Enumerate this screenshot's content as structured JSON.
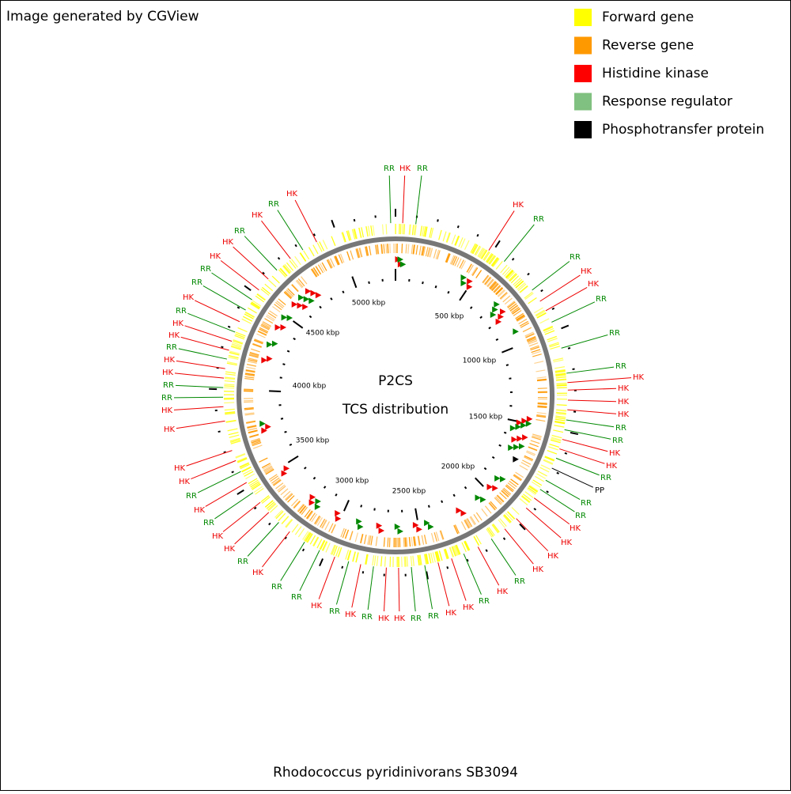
{
  "header": {
    "title": "Image generated by CGView"
  },
  "legend": [
    {
      "label": "Forward gene",
      "color": "#ffff00"
    },
    {
      "label": "Reverse gene",
      "color": "#ff9900"
    },
    {
      "label": "Histidine kinase",
      "color": "#ff0000"
    },
    {
      "label": "Response regulator",
      "color": "#80c080"
    },
    {
      "label": "Phosphotransfer protein",
      "color": "#000000"
    }
  ],
  "center": {
    "line1": "P2CS",
    "line2": "TCS distribution"
  },
  "scale_labels": [
    "500 kbp",
    "1000 kbp",
    "1500 kbp",
    "2000 kbp",
    "2500 kbp",
    "3000 kbp",
    "3500 kbp",
    "4000 kbp",
    "4500 kbp",
    "5000 kbp"
  ],
  "features": [
    "RR",
    "HK",
    "RR",
    "HK",
    "RR",
    "RR",
    "HK",
    "HK",
    "RR",
    "RR",
    "RR",
    "HK",
    "HK",
    "HK",
    "HK",
    "RR",
    "RR",
    "HK",
    "HK",
    "RR",
    "PP",
    "RR",
    "RR",
    "HK",
    "HK",
    "HK",
    "HK",
    "RR",
    "HK",
    "RR",
    "HK",
    "HK",
    "RR",
    "RR",
    "HK",
    "HK",
    "RR",
    "HK",
    "RR",
    "HK",
    "RR",
    "RR",
    "HK",
    "RR",
    "HK",
    "HK",
    "RR",
    "HK",
    "RR",
    "HK",
    "HK",
    "HK",
    "HK",
    "RR",
    "RR",
    "HK",
    "HK",
    "RR",
    "HK",
    "HK",
    "RR",
    "HK",
    "RR",
    "RR",
    "HK",
    "HK",
    "RR",
    "HK",
    "RR",
    "HK"
  ],
  "footer": {
    "title": "Rhodococcus pyridinivorans SB3094"
  }
}
